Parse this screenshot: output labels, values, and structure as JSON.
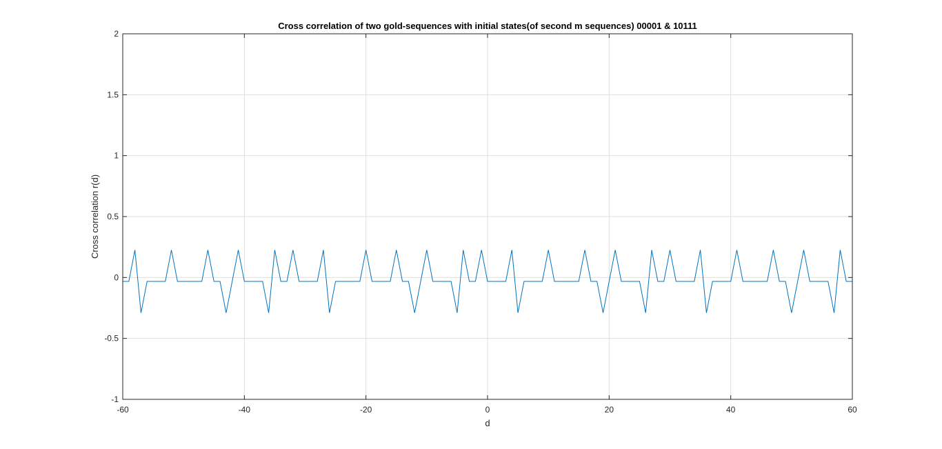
{
  "chart_data": {
    "type": "line",
    "title": "Cross correlation of two gold-sequences with initial states(of second m sequences) 00001 & 10111",
    "xlabel": "d",
    "ylabel": "Cross correlation r(d)",
    "xlim": [
      -60,
      60
    ],
    "ylim": [
      -1,
      2
    ],
    "xticks": [
      -60,
      -40,
      -20,
      0,
      20,
      40,
      60
    ],
    "yticks": [
      -1,
      -0.5,
      0,
      0.5,
      1,
      1.5,
      2
    ],
    "xtick_labels": [
      "-60",
      "-40",
      "-20",
      "0",
      "20",
      "40",
      "60"
    ],
    "ytick_labels": [
      "-1",
      "-0.5",
      "0",
      "0.5",
      "1",
      "1.5",
      "2"
    ],
    "grid": true,
    "line_color": "#0072BD",
    "series": [
      {
        "x": [
          -60,
          -59,
          -58,
          -57,
          -56,
          -55,
          -54,
          -53,
          -52,
          -51,
          -50,
          -49,
          -48,
          -47,
          -46,
          -45,
          -44,
          -43,
          -42,
          -41,
          -40,
          -39,
          -38,
          -37,
          -36,
          -35,
          -34,
          -33,
          -32,
          -31,
          -30,
          -29,
          -28,
          -27,
          -26,
          -25,
          -24,
          -23,
          -22,
          -21,
          -20,
          -19,
          -18,
          -17,
          -16,
          -15,
          -14,
          -13,
          -12,
          -11,
          -10,
          -9,
          -8,
          -7,
          -6,
          -5,
          -4,
          -3,
          -2,
          -1,
          0,
          1,
          2,
          3,
          4,
          5,
          6,
          7,
          8,
          9,
          10,
          11,
          12,
          13,
          14,
          15,
          16,
          17,
          18,
          19,
          20,
          21,
          22,
          23,
          24,
          25,
          26,
          27,
          28,
          29,
          30,
          31,
          32,
          33,
          34,
          35,
          36,
          37,
          38,
          39,
          40,
          41,
          42,
          43,
          44,
          45,
          46,
          47,
          48,
          49,
          50,
          51,
          52,
          53,
          54,
          55,
          56,
          57,
          58,
          59,
          60
        ],
        "y": [
          -0.032,
          -0.032,
          0.226,
          -0.29,
          -0.032,
          -0.032,
          -0.032,
          -0.032,
          0.226,
          -0.032,
          -0.032,
          -0.032,
          -0.032,
          -0.032,
          0.226,
          -0.032,
          -0.032,
          -0.29,
          -0.032,
          0.226,
          -0.032,
          -0.032,
          -0.032,
          -0.032,
          -0.29,
          0.226,
          -0.032,
          -0.032,
          0.226,
          -0.032,
          -0.032,
          -0.032,
          -0.032,
          0.226,
          -0.29,
          -0.032,
          -0.032,
          -0.032,
          -0.032,
          -0.032,
          0.226,
          -0.032,
          -0.032,
          -0.032,
          -0.032,
          0.226,
          -0.032,
          -0.032,
          -0.29,
          -0.032,
          0.226,
          -0.032,
          -0.032,
          -0.032,
          -0.032,
          -0.29,
          0.226,
          -0.032,
          -0.032,
          0.226,
          -0.032,
          -0.032,
          -0.032,
          -0.032,
          0.226,
          -0.29,
          -0.032,
          -0.032,
          -0.032,
          -0.032,
          0.226,
          -0.032,
          -0.032,
          -0.032,
          -0.032,
          -0.032,
          0.226,
          -0.032,
          -0.032,
          -0.29,
          -0.032,
          0.226,
          -0.032,
          -0.032,
          -0.032,
          -0.032,
          -0.29,
          0.226,
          -0.032,
          -0.032,
          0.226,
          -0.032,
          -0.032,
          -0.032,
          -0.032,
          0.226,
          -0.29,
          -0.032,
          -0.032,
          -0.032,
          -0.032,
          0.226,
          -0.032,
          -0.032,
          -0.032,
          -0.032,
          -0.032,
          0.226,
          -0.032,
          -0.032,
          -0.29,
          -0.032,
          0.226,
          -0.032,
          -0.032,
          -0.032,
          -0.032,
          -0.29,
          0.226,
          -0.032,
          -0.032
        ]
      }
    ]
  }
}
